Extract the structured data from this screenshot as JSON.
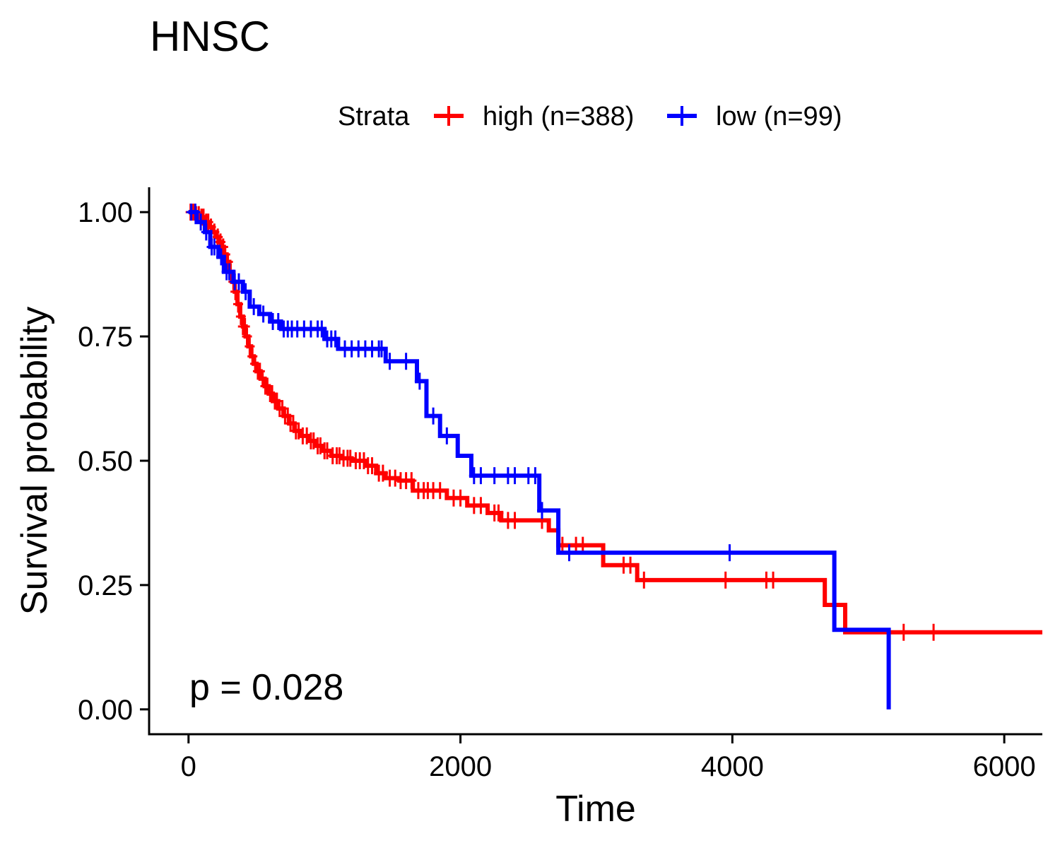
{
  "chart_data": {
    "type": "line",
    "subtype": "kaplan-meier",
    "title": "HNSC",
    "xlabel": "Time",
    "ylabel": "Survival probability",
    "xlim": [
      -290,
      6280
    ],
    "ylim": [
      -0.05,
      1.05
    ],
    "x_ticks": [
      {
        "value": 0,
        "label": "0"
      },
      {
        "value": 2000,
        "label": "2000"
      },
      {
        "value": 4000,
        "label": "4000"
      },
      {
        "value": 6000,
        "label": "6000"
      }
    ],
    "y_ticks": [
      {
        "value": 0.0,
        "label": "0.00"
      },
      {
        "value": 0.25,
        "label": "0.25"
      },
      {
        "value": 0.5,
        "label": "0.50"
      },
      {
        "value": 0.75,
        "label": "0.75"
      },
      {
        "value": 1.0,
        "label": "1.00"
      }
    ],
    "grid": false,
    "legend": {
      "title": "Strata",
      "placement": "top",
      "entries": [
        {
          "label": "high (n=388)",
          "color": "#ff0000"
        },
        {
          "label": "low (n=99)",
          "color": "#0000ff"
        }
      ]
    },
    "annotation": "p = 0.028",
    "series": [
      {
        "name": "high (n=388)",
        "color": "#ff0000",
        "steps": [
          [
            0,
            1.0
          ],
          [
            40,
            0.995
          ],
          [
            80,
            0.99
          ],
          [
            120,
            0.98
          ],
          [
            150,
            0.97
          ],
          [
            180,
            0.96
          ],
          [
            200,
            0.95
          ],
          [
            220,
            0.94
          ],
          [
            240,
            0.93
          ],
          [
            260,
            0.915
          ],
          [
            280,
            0.9
          ],
          [
            300,
            0.88
          ],
          [
            320,
            0.86
          ],
          [
            340,
            0.84
          ],
          [
            360,
            0.815
          ],
          [
            380,
            0.79
          ],
          [
            400,
            0.77
          ],
          [
            420,
            0.75
          ],
          [
            440,
            0.73
          ],
          [
            460,
            0.71
          ],
          [
            480,
            0.695
          ],
          [
            500,
            0.68
          ],
          [
            530,
            0.665
          ],
          [
            560,
            0.65
          ],
          [
            590,
            0.635
          ],
          [
            620,
            0.62
          ],
          [
            660,
            0.605
          ],
          [
            700,
            0.59
          ],
          [
            740,
            0.575
          ],
          [
            780,
            0.56
          ],
          [
            830,
            0.55
          ],
          [
            880,
            0.54
          ],
          [
            930,
            0.53
          ],
          [
            980,
            0.52
          ],
          [
            1050,
            0.51
          ],
          [
            1120,
            0.505
          ],
          [
            1200,
            0.5
          ],
          [
            1300,
            0.49
          ],
          [
            1380,
            0.475
          ],
          [
            1450,
            0.465
          ],
          [
            1550,
            0.46
          ],
          [
            1650,
            0.44
          ],
          [
            1900,
            0.425
          ],
          [
            2050,
            0.41
          ],
          [
            2200,
            0.395
          ],
          [
            2300,
            0.38
          ],
          [
            2650,
            0.36
          ],
          [
            2720,
            0.33
          ],
          [
            3050,
            0.29
          ],
          [
            3300,
            0.26
          ],
          [
            4680,
            0.21
          ],
          [
            4830,
            0.155
          ],
          [
            6280,
            0.155
          ]
        ],
        "censor_times": [
          15,
          35,
          55,
          75,
          95,
          110,
          130,
          145,
          165,
          190,
          215,
          235,
          255,
          270,
          290,
          310,
          330,
          345,
          365,
          385,
          400,
          415,
          430,
          450,
          470,
          490,
          510,
          525,
          545,
          565,
          580,
          600,
          615,
          635,
          650,
          670,
          690,
          710,
          730,
          750,
          770,
          790,
          810,
          840,
          870,
          900,
          920,
          950,
          970,
          1000,
          1020,
          1060,
          1090,
          1110,
          1140,
          1170,
          1190,
          1230,
          1260,
          1290,
          1320,
          1350,
          1400,
          1430,
          1480,
          1520,
          1560,
          1600,
          1640,
          1690,
          1730,
          1760,
          1800,
          1850,
          1950,
          2000,
          2100,
          2150,
          2250,
          2280,
          2350,
          2400,
          2600,
          2750,
          2850,
          2900,
          3200,
          3250,
          3350,
          3950,
          4250,
          4300,
          5260,
          5480
        ]
      },
      {
        "name": "low (n=99)",
        "color": "#0000ff",
        "steps": [
          [
            0,
            1.0
          ],
          [
            60,
            0.98
          ],
          [
            120,
            0.96
          ],
          [
            160,
            0.93
          ],
          [
            220,
            0.91
          ],
          [
            260,
            0.88
          ],
          [
            330,
            0.86
          ],
          [
            400,
            0.84
          ],
          [
            450,
            0.81
          ],
          [
            520,
            0.795
          ],
          [
            600,
            0.78
          ],
          [
            680,
            0.765
          ],
          [
            1000,
            0.745
          ],
          [
            1100,
            0.725
          ],
          [
            1450,
            0.7
          ],
          [
            1680,
            0.66
          ],
          [
            1750,
            0.59
          ],
          [
            1850,
            0.55
          ],
          [
            1980,
            0.51
          ],
          [
            2080,
            0.47
          ],
          [
            2580,
            0.4
          ],
          [
            2720,
            0.315
          ],
          [
            4750,
            0.16
          ],
          [
            5150,
            0.0
          ]
        ],
        "steps_end": 5150,
        "censor_times": [
          20,
          50,
          90,
          130,
          170,
          190,
          240,
          280,
          300,
          340,
          370,
          420,
          480,
          550,
          620,
          660,
          700,
          730,
          760,
          800,
          850,
          900,
          950,
          980,
          1020,
          1050,
          1080,
          1150,
          1200,
          1250,
          1300,
          1350,
          1400,
          1420,
          1480,
          1600,
          1700,
          1800,
          1900,
          2100,
          2150,
          2250,
          2350,
          2400,
          2500,
          2550,
          2600,
          2800,
          3980
        ]
      }
    ]
  }
}
